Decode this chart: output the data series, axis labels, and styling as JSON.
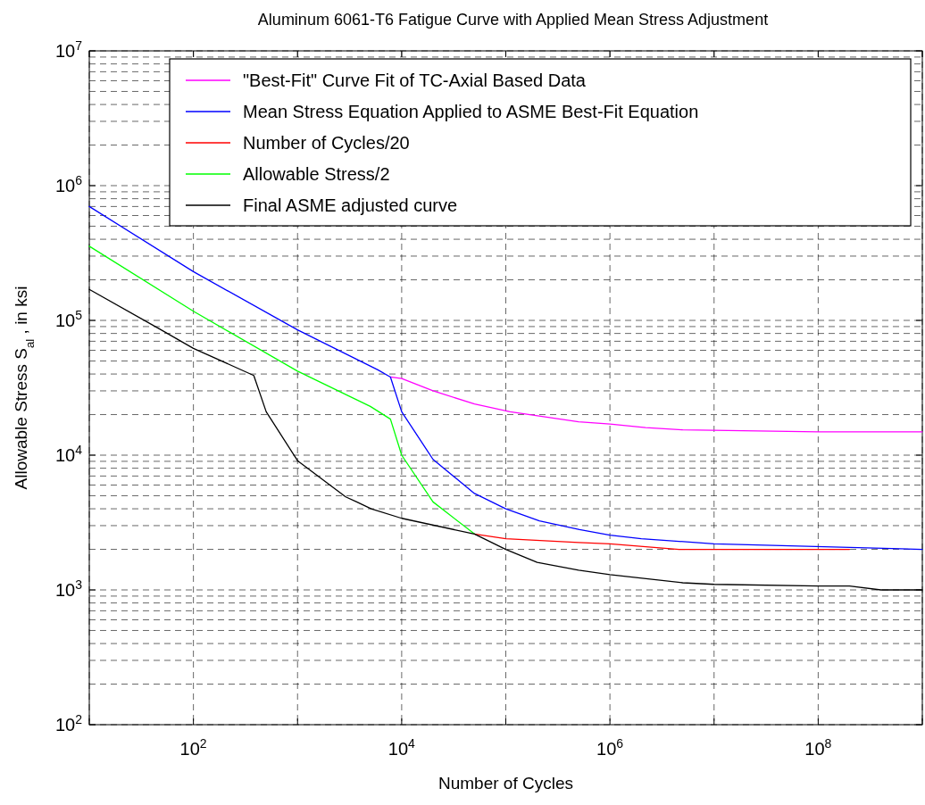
{
  "chart_data": {
    "type": "line",
    "title": "Aluminum 6061-T6 Fatigue Curve with Applied Mean Stress Adjustment",
    "xlabel": "Number of Cycles",
    "ylabel": "Allowable Stress S$_{al}$ , in ksi",
    "log": "xy",
    "grid": true,
    "legend": "top",
    "line_style": "solid",
    "xlim": [
      10,
      1000000000
    ],
    "ylim": [
      100,
      10000000
    ],
    "xticks": [
      {
        "value": 10,
        "label": null
      },
      {
        "value": 100,
        "label": "10$^{2}$"
      },
      {
        "value": 1000,
        "label": null
      },
      {
        "value": 10000,
        "label": "10$^{4}$"
      },
      {
        "value": 100000,
        "label": null
      },
      {
        "value": 1000000,
        "label": "10$^{6}$"
      },
      {
        "value": 10000000,
        "label": null
      },
      {
        "value": 100000000,
        "label": "10$^{8}$"
      },
      {
        "value": 1000000000,
        "label": null
      }
    ],
    "yticks": [
      {
        "value": 100,
        "label": "10$^{2}$"
      },
      {
        "value": 1000,
        "label": "10$^{3}$"
      },
      {
        "value": 10000,
        "label": "10$^{4}$"
      },
      {
        "value": 100000,
        "label": "10$^{5}$"
      },
      {
        "value": 1000000,
        "label": "10$^{6}$"
      },
      {
        "value": 10000000,
        "label": "10$^{7}$"
      }
    ],
    "series": [
      {
        "name": "\"Best-Fit\" Curve Fit of TC-Axial Based Data",
        "color": "#ff00ff",
        "x": [
          7800,
          10000,
          20000,
          50000,
          110000,
          500000,
          1000000,
          2200000,
          5000000,
          100000000,
          1000000000
        ],
        "values": [
          38000,
          37000,
          30000,
          24000,
          21000,
          17700,
          17000,
          16000,
          15400,
          14900,
          14900
        ]
      },
      {
        "name": "Mean Stress Equation Applied to ASME Best-Fit Equation",
        "color": "#0000ff",
        "x": [
          10,
          100,
          1000,
          5900,
          7800,
          10000,
          20000,
          50000,
          100000,
          210000,
          510000,
          1000000,
          2000000,
          10000000,
          100000000,
          1000000000
        ],
        "values": [
          700000,
          230000,
          85000,
          43000,
          38000,
          21000,
          9300,
          5200,
          4000,
          3250,
          2800,
          2550,
          2400,
          2200,
          null,
          2000
        ]
      },
      {
        "name": "Number of Cycles/20",
        "color": "#ff0000",
        "x": [
          50000,
          100000,
          500000,
          1000000,
          4600000,
          200000000
        ],
        "values": [
          2600,
          2400,
          2250,
          2200,
          2000,
          2000
        ]
      },
      {
        "name": "Allowable Stress/2",
        "color": "#00ff00",
        "x": [
          10,
          100,
          1000,
          5000,
          7800,
          10000,
          20000,
          50000
        ],
        "values": [
          355000,
          117000,
          42000,
          23000,
          18500,
          10000,
          4500,
          2600
        ]
      },
      {
        "name": "Final ASME adjusted curve",
        "color": "#000000",
        "x": [
          10,
          49,
          100,
          380,
          500,
          1000,
          2900,
          3700,
          5100,
          10000,
          50000,
          100000,
          200000,
          500000,
          1000000,
          5000000,
          10000000,
          100000000,
          200000000,
          400000000,
          1000000000
        ],
        "values": [
          170000,
          85000,
          62000,
          39000,
          21000,
          9100,
          4900,
          4500,
          4000,
          3400,
          2600,
          2000,
          1600,
          1400,
          1300,
          1130,
          1100,
          1070,
          1070,
          1000,
          1000
        ]
      }
    ]
  }
}
